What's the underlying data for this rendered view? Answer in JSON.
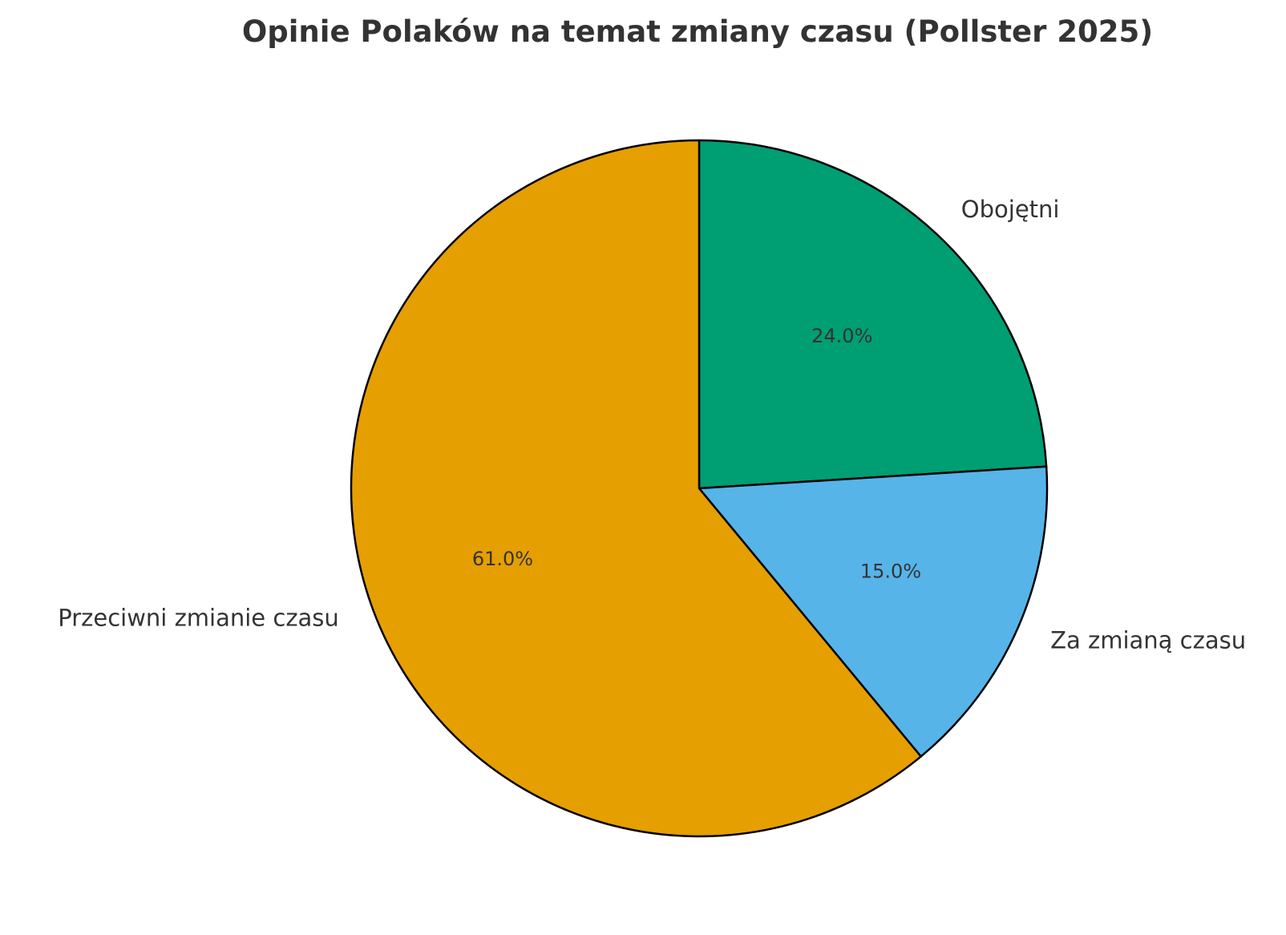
{
  "chart_data": {
    "type": "pie",
    "title": "Opinie Polaków na temat zmiany czasu (Pollster 2025)",
    "slices": [
      {
        "label": "Obojętni",
        "value": 24.0,
        "pct_label": "24.0%",
        "color": "#009E73"
      },
      {
        "label": "Za zmianą czasu",
        "value": 15.0,
        "pct_label": "15.0%",
        "color": "#56B4E9"
      },
      {
        "label": "Przeciwni zmianie czasu",
        "value": 61.0,
        "pct_label": "61.0%",
        "color": "#E69F00"
      }
    ],
    "start_angle": "12 o'clock",
    "direction": "clockwise"
  }
}
